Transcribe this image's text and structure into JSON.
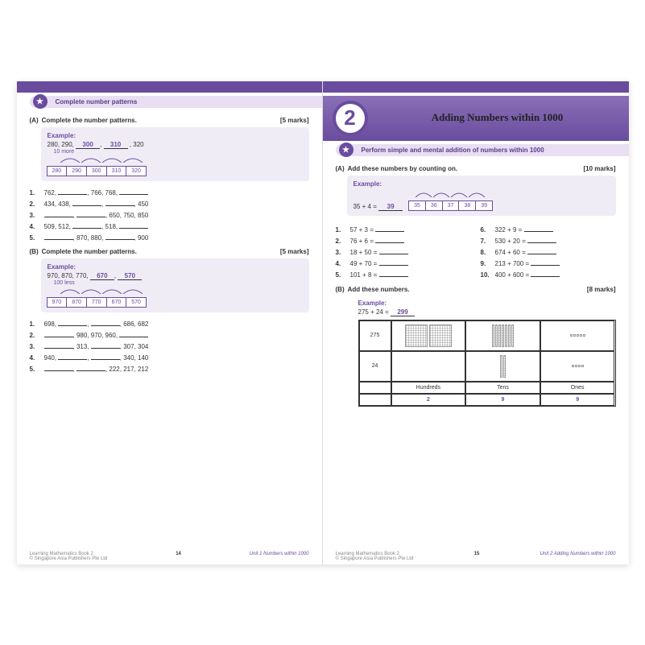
{
  "accent_color": "#6a4c9e",
  "left": {
    "section_bar": "Complete number patterns",
    "A": {
      "label": "(A)",
      "instruction": "Complete the number patterns.",
      "marks": "[5 marks]",
      "example_label": "Example:",
      "example_seq_text": "280, 290,",
      "example_ans1": "300",
      "example_ans2": "310",
      "example_tail": ", 320",
      "rule_label": "10 more",
      "rule_cells": [
        "280",
        "290",
        "300",
        "310",
        "320"
      ],
      "items": [
        {
          "n": "1.",
          "t": "762, _______, 766, 768, _______"
        },
        {
          "n": "2.",
          "t": "434, 438, _______, _______, 450"
        },
        {
          "n": "3.",
          "t": "_______, _______, 650, 750, 850"
        },
        {
          "n": "4.",
          "t": "509, 512, _______, 518, _______"
        },
        {
          "n": "5.",
          "t": "_______, 870, 880, _______, 900"
        }
      ]
    },
    "B": {
      "label": "(B)",
      "instruction": "Complete the number patterns.",
      "marks": "[5 marks]",
      "example_label": "Example:",
      "example_seq_text": "970, 870, 770,",
      "example_ans1": "670",
      "example_ans2": "570",
      "rule_label": "100 less",
      "rule_cells": [
        "970",
        "870",
        "770",
        "670",
        "570"
      ],
      "items": [
        {
          "n": "1.",
          "t": "698, _______, _______, 686, 682"
        },
        {
          "n": "2.",
          "t": "_______, 980, 970, 960, _______"
        },
        {
          "n": "3.",
          "t": "_______, 313, _______, 307, 304"
        },
        {
          "n": "4.",
          "t": "940, _______, _______, 340, 140"
        },
        {
          "n": "5.",
          "t": "_______, _______, 222, 217, 212"
        }
      ]
    },
    "footer": {
      "book": "Learning Mathematics Book 2",
      "pub": "© Singapore Asia Publishers Pte Ltd",
      "page": "14",
      "unit": "Unit 1 Numbers within 1000"
    }
  },
  "right": {
    "chapter_num": "2",
    "chapter_title": "Adding Numbers within 1000",
    "section_bar": "Perform simple and mental addition of numbers within 1000",
    "A": {
      "label": "(A)",
      "instruction": "Add these numbers by counting on.",
      "marks": "[10 marks]",
      "example_label": "Example:",
      "example_expr": "35 + 4 =",
      "example_ans": "39",
      "example_cells": [
        "35",
        "36",
        "37",
        "38",
        "39"
      ],
      "items_left": [
        {
          "n": "1.",
          "t": "57 + 3 = _______"
        },
        {
          "n": "2.",
          "t": "76 + 6 = _______"
        },
        {
          "n": "3.",
          "t": "18 + 50 = _______"
        },
        {
          "n": "4.",
          "t": "49 + 70 = _______"
        },
        {
          "n": "5.",
          "t": "101 + 8 = _______"
        }
      ],
      "items_right": [
        {
          "n": "6.",
          "t": "322 + 9 = _______"
        },
        {
          "n": "7.",
          "t": "530 + 20 = _______"
        },
        {
          "n": "8.",
          "t": "674 + 60 = _______"
        },
        {
          "n": "9.",
          "t": "213 + 700 = _______"
        },
        {
          "n": "10.",
          "t": "400 + 600 = _______"
        }
      ]
    },
    "B": {
      "label": "(B)",
      "instruction": "Add these numbers.",
      "marks": "[8 marks]",
      "example_label": "Example:",
      "example_expr": "275 + 24 =",
      "example_ans": "299",
      "table": {
        "rows": [
          "275",
          "24"
        ],
        "headers": [
          "Hundreds",
          "Tens",
          "Ones"
        ],
        "values": [
          "2",
          "9",
          "9"
        ]
      }
    },
    "footer": {
      "book": "Learning Mathematics Book 2",
      "pub": "© Singapore Asia Publishers Pte Ltd",
      "page": "15",
      "unit": "Unit 2 Adding Numbers within 1000"
    }
  }
}
